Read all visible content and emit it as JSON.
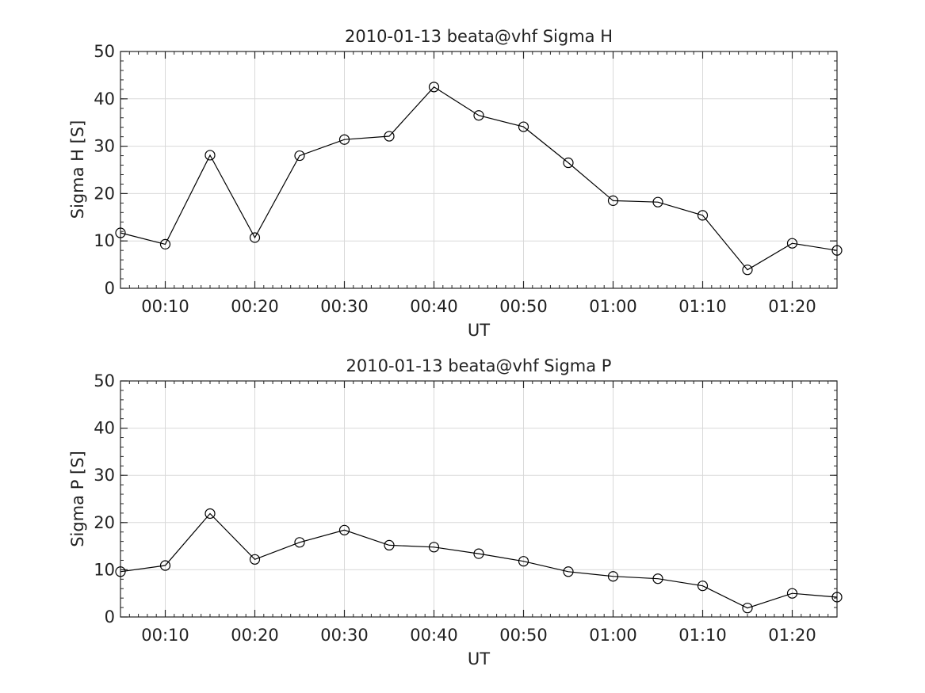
{
  "chart_data": [
    {
      "type": "line",
      "title": "2010-01-13  beata@vhf Sigma H",
      "xlabel": "UT",
      "ylabel": "Sigma H [S]",
      "x": [
        "00:05",
        "00:10",
        "00:15",
        "00:20",
        "00:25",
        "00:30",
        "00:35",
        "00:40",
        "00:45",
        "00:50",
        "00:55",
        "01:00",
        "01:05",
        "01:10",
        "01:15",
        "01:20",
        "01:25"
      ],
      "xlim": [
        "00:05",
        "01:25"
      ],
      "xticks": [
        "00:10",
        "00:20",
        "00:30",
        "00:40",
        "00:50",
        "01:00",
        "01:10",
        "01:20"
      ],
      "ylim": [
        0,
        50
      ],
      "yticks": [
        "0",
        "10",
        "20",
        "30",
        "40",
        "50"
      ],
      "grid": true,
      "marker": "open-circle",
      "line_color": "#000000",
      "series": [
        {
          "values": [
            11.7,
            9.3,
            28.1,
            10.7,
            28.0,
            31.4,
            32.1,
            42.5,
            36.5,
            34.1,
            26.5,
            18.5,
            18.2,
            15.4,
            3.9,
            9.5,
            8.0
          ]
        }
      ]
    },
    {
      "type": "line",
      "title": "2010-01-13  beata@vhf Sigma P",
      "xlabel": "UT",
      "ylabel": "Sigma P [S]",
      "x": [
        "00:05",
        "00:10",
        "00:15",
        "00:20",
        "00:25",
        "00:30",
        "00:35",
        "00:40",
        "00:45",
        "00:50",
        "00:55",
        "01:00",
        "01:05",
        "01:10",
        "01:15",
        "01:20",
        "01:25"
      ],
      "xlim": [
        "00:05",
        "01:25"
      ],
      "xticks": [
        "00:10",
        "00:20",
        "00:30",
        "00:40",
        "00:50",
        "01:00",
        "01:10",
        "01:20"
      ],
      "ylim": [
        0,
        50
      ],
      "yticks": [
        "0",
        "10",
        "20",
        "30",
        "40",
        "50"
      ],
      "grid": true,
      "marker": "open-circle",
      "line_color": "#000000",
      "series": [
        {
          "values": [
            9.6,
            10.9,
            21.9,
            12.2,
            15.8,
            18.4,
            15.2,
            14.8,
            13.4,
            11.8,
            9.6,
            8.6,
            8.1,
            6.6,
            1.9,
            5.0,
            4.2
          ]
        }
      ]
    }
  ]
}
